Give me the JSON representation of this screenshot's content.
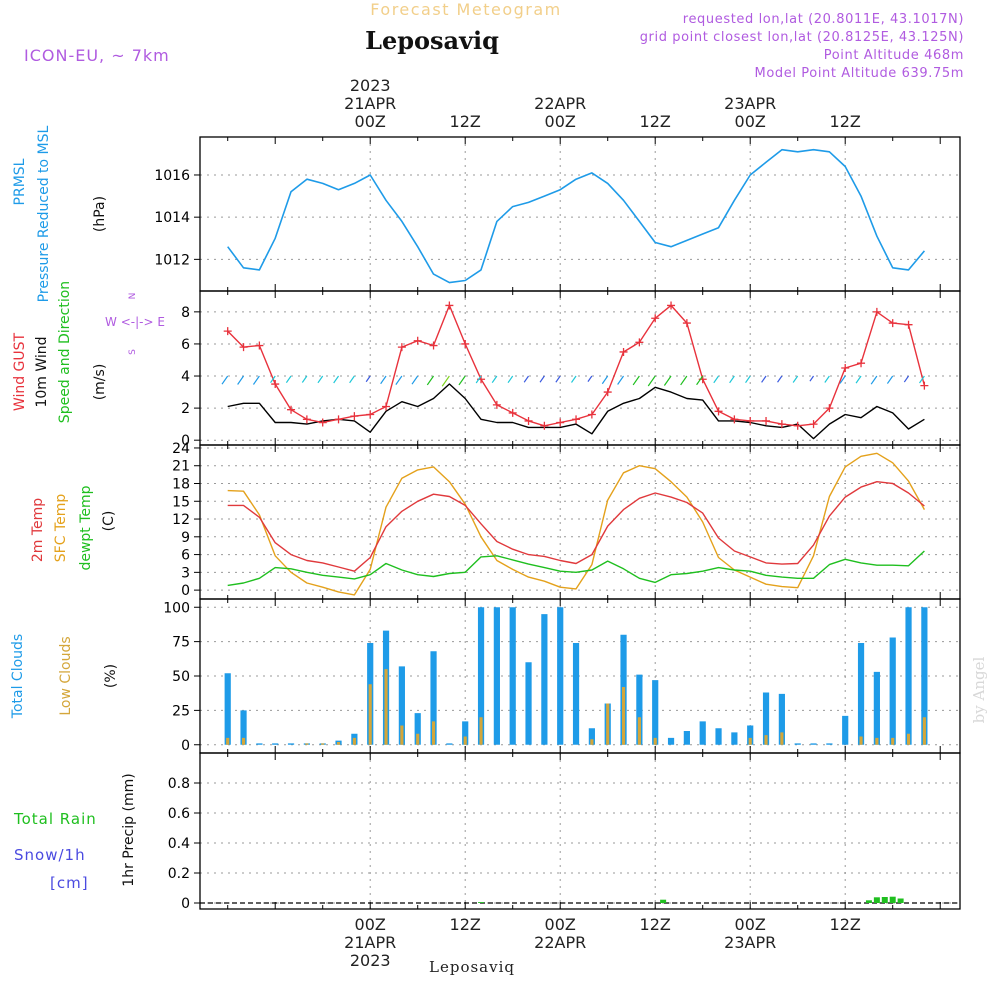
{
  "header": {
    "title_faint": "Forecast Meteogram",
    "location": "Leposaviq",
    "model": "ICON-EU, ~ 7km",
    "requested": "requested lon,lat (20.8011E, 43.1017N)",
    "gridpoint": "grid point closest lon,lat (20.8125E, 43.125N)",
    "altitude": "Point Altitude 468m",
    "model_altitude": "Model Point Altitude 639.75m",
    "footer_location": "Leposaviq",
    "watermark": "by Angel"
  },
  "time_axis": {
    "top": [
      {
        "line1": "2023",
        "line2": "21APR",
        "line3": "00Z"
      },
      {
        "line1": "",
        "line2": "",
        "line3": "12Z"
      },
      {
        "line1": "",
        "line2": "22APR",
        "line3": "00Z"
      },
      {
        "line1": "",
        "line2": "",
        "line3": "12Z"
      },
      {
        "line1": "",
        "line2": "23APR",
        "line3": "00Z"
      },
      {
        "line1": "",
        "line2": "",
        "line3": "12Z"
      }
    ],
    "bottom": [
      {
        "line1": "00Z",
        "line2": "21APR",
        "line3": "2023"
      },
      {
        "line1": "12Z",
        "line2": "",
        "line3": ""
      },
      {
        "line1": "00Z",
        "line2": "22APR",
        "line3": ""
      },
      {
        "line1": "12Z",
        "line2": "",
        "line3": ""
      },
      {
        "line1": "00Z",
        "line2": "23APR",
        "line3": ""
      },
      {
        "line1": "12Z",
        "line2": "",
        "line3": ""
      }
    ]
  },
  "panels": {
    "pressure": {
      "label1": "PRMSL",
      "label2": "Pressure Reduced to MSL",
      "unit": "(hPa)",
      "color1": "#1e9be8"
    },
    "wind": {
      "label_gust": "Wind GUST",
      "label_10m": "10m Wind",
      "label_speed": "Speed and Direction",
      "unit": "(m/s)",
      "compass_n": "N",
      "compass_s": "S",
      "compass_ew": "W <-|-> E"
    },
    "temp": {
      "label_2m": "2m Temp",
      "label_sfc": "SFC Temp",
      "label_dew": "dewpt Temp",
      "unit": "(C)"
    },
    "clouds": {
      "label_total": "Total Clouds",
      "label_low": "Low Clouds",
      "unit": "(%)"
    },
    "precip": {
      "label_rain": "Total  Rain",
      "label_snow": "Snow/1h",
      "label_cm": "[cm]",
      "unit": "1hr Precip (mm)"
    }
  },
  "colors": {
    "pressure": "#1e9be8",
    "gust": "#e8323c",
    "wind10m": "#000000",
    "temp2m": "#e0393c",
    "sfc": "#e4a11b",
    "dew": "#1fbf1f",
    "totalcloud": "#1e9be8",
    "lowcloud": "#d4a63a",
    "rain": "#1fbf1f",
    "title_faint": "#f2cf8a",
    "meta": "#b05be0"
  },
  "chart_data": [
    {
      "type": "line",
      "title": "PRMSL Pressure Reduced to MSL",
      "ylabel": "(hPa)",
      "ylim": [
        1010.5,
        1017.8
      ],
      "yticks": [
        1012,
        1014,
        1016
      ],
      "x_hours": [
        -18,
        -16,
        -14,
        -12,
        -10,
        -8,
        -6,
        -4,
        -2,
        0,
        2,
        4,
        6,
        8,
        10,
        12,
        14,
        16,
        18,
        20,
        22,
        24,
        26,
        28,
        30,
        32,
        34,
        36,
        38,
        40,
        42,
        44,
        46,
        48,
        50,
        52,
        54,
        56,
        58,
        60,
        62,
        64,
        66,
        68,
        70
      ],
      "values": [
        1012.6,
        1011.6,
        1011.5,
        1013.0,
        1015.2,
        1015.8,
        1015.6,
        1015.3,
        1015.6,
        1016.0,
        1014.8,
        1013.8,
        1012.6,
        1011.3,
        1010.9,
        1011.0,
        1011.5,
        1013.8,
        1014.5,
        1014.7,
        1015.0,
        1015.3,
        1015.8,
        1016.1,
        1015.6,
        1014.8,
        1013.8,
        1012.8,
        1012.6,
        1012.9,
        1013.2,
        1013.5,
        1014.8,
        1016.0,
        1016.6,
        1017.2,
        1017.1,
        1017.2,
        1017.1,
        1016.4,
        1015.0,
        1013.1,
        1011.6,
        1011.5,
        1012.4
      ]
    },
    {
      "type": "line",
      "title": "Wind GUST / 10m Wind",
      "ylabel": "(m/s)",
      "ylim": [
        -0.3,
        9.3
      ],
      "yticks": [
        0,
        2,
        4,
        6,
        8
      ],
      "x_hours": [
        -18,
        -16,
        -14,
        -12,
        -10,
        -8,
        -6,
        -4,
        -2,
        0,
        2,
        4,
        6,
        8,
        10,
        12,
        14,
        16,
        18,
        20,
        22,
        24,
        26,
        28,
        30,
        32,
        34,
        36,
        38,
        40,
        42,
        44,
        46,
        48,
        50,
        52,
        54,
        56,
        58,
        60,
        62,
        64,
        66,
        68,
        70
      ],
      "series": [
        {
          "name": "Wind GUST",
          "values": [
            6.8,
            5.8,
            5.9,
            3.5,
            1.9,
            1.3,
            1.1,
            1.3,
            1.5,
            1.6,
            2.1,
            5.8,
            6.2,
            5.9,
            8.4,
            6.0,
            3.8,
            2.2,
            1.7,
            1.2,
            0.9,
            1.1,
            1.3,
            1.6,
            3.0,
            5.5,
            6.1,
            7.6,
            8.4,
            7.3,
            3.8,
            1.8,
            1.3,
            1.2,
            1.2,
            1.0,
            0.9,
            1.0,
            2.0,
            4.5,
            4.8,
            8.0,
            7.3,
            7.2,
            3.4
          ]
        },
        {
          "name": "10m Wind",
          "values": [
            2.1,
            2.3,
            2.3,
            1.1,
            1.1,
            1.0,
            1.2,
            1.3,
            1.2,
            0.5,
            1.8,
            2.4,
            2.1,
            2.6,
            3.5,
            2.6,
            1.3,
            1.1,
            1.1,
            0.8,
            0.8,
            0.8,
            1.0,
            0.4,
            1.8,
            2.3,
            2.6,
            3.3,
            3.0,
            2.6,
            2.5,
            1.2,
            1.2,
            1.1,
            0.9,
            0.8,
            1.0,
            0.1,
            1.0,
            1.6,
            1.4,
            2.1,
            1.7,
            0.7,
            1.3
          ]
        }
      ]
    },
    {
      "type": "line",
      "title": "2m Temp / SFC Temp / dewpt Temp",
      "ylabel": "(C)",
      "ylim": [
        -1.5,
        24.5
      ],
      "yticks": [
        0,
        3,
        6,
        9,
        12,
        15,
        18,
        21,
        24
      ],
      "x_hours": [
        -18,
        -16,
        -14,
        -12,
        -10,
        -8,
        -6,
        -4,
        -2,
        0,
        2,
        4,
        6,
        8,
        10,
        12,
        14,
        16,
        18,
        20,
        22,
        24,
        26,
        28,
        30,
        32,
        34,
        36,
        38,
        40,
        42,
        44,
        46,
        48,
        50,
        52,
        54,
        56,
        58,
        60,
        62,
        64,
        66,
        68,
        70
      ],
      "series": [
        {
          "name": "2m Temp",
          "values": [
            14.3,
            14.3,
            12.3,
            8.0,
            6.0,
            5.0,
            4.6,
            3.9,
            3.2,
            5.5,
            10.7,
            13.3,
            15.0,
            16.2,
            15.8,
            14.3,
            11.2,
            8.2,
            6.9,
            6.0,
            5.7,
            5.0,
            4.5,
            6.0,
            10.8,
            13.6,
            15.5,
            16.4,
            15.7,
            14.8,
            13.0,
            8.8,
            6.6,
            5.6,
            4.6,
            4.4,
            4.5,
            7.6,
            12.5,
            15.7,
            17.4,
            18.3,
            18.0,
            16.4,
            14.2
          ]
        },
        {
          "name": "SFC Temp",
          "values": [
            16.8,
            16.7,
            12.7,
            5.8,
            3.0,
            1.2,
            0.5,
            -0.3,
            -0.8,
            3.5,
            14.0,
            18.9,
            20.3,
            20.8,
            18.3,
            14.5,
            9.0,
            5.0,
            3.5,
            2.2,
            1.5,
            0.5,
            0.2,
            4.3,
            15.2,
            19.8,
            21.0,
            20.5,
            18.3,
            15.7,
            11.5,
            5.5,
            3.4,
            2.2,
            1.0,
            0.6,
            0.4,
            5.8,
            15.8,
            20.8,
            22.6,
            23.1,
            21.5,
            18.4,
            13.6
          ]
        },
        {
          "name": "dewpt Temp",
          "values": [
            0.8,
            1.2,
            2.0,
            3.8,
            3.6,
            3.0,
            2.5,
            2.2,
            1.9,
            2.6,
            4.5,
            3.4,
            2.6,
            2.3,
            2.8,
            3.0,
            5.6,
            5.8,
            5.1,
            4.4,
            3.8,
            3.2,
            3.0,
            3.4,
            4.9,
            3.6,
            2.0,
            1.3,
            2.6,
            2.8,
            3.2,
            3.8,
            3.4,
            3.2,
            2.5,
            2.2,
            2.0,
            2.0,
            4.3,
            5.2,
            4.6,
            4.2,
            4.2,
            4.1,
            6.6
          ]
        }
      ]
    },
    {
      "type": "bar",
      "title": "Total Clouds / Low Clouds",
      "ylabel": "(%)",
      "ylim": [
        -6,
        106
      ],
      "yticks": [
        0,
        25,
        50,
        75,
        100
      ],
      "x_hours": [
        -18,
        -16,
        -14,
        -12,
        -10,
        -8,
        -6,
        -4,
        -2,
        0,
        2,
        4,
        6,
        8,
        10,
        12,
        14,
        16,
        18,
        20,
        22,
        24,
        26,
        28,
        30,
        32,
        34,
        36,
        38,
        40,
        42,
        44,
        46,
        48,
        50,
        52,
        54,
        56,
        58,
        60,
        62,
        64,
        66,
        68,
        70
      ],
      "series": [
        {
          "name": "Total Clouds",
          "values": [
            52,
            25,
            1,
            1,
            1,
            1,
            1,
            3,
            8,
            74,
            83,
            57,
            23,
            68,
            1,
            17,
            100,
            100,
            100,
            60,
            95,
            100,
            74,
            12,
            30,
            80,
            51,
            47,
            5,
            10,
            17,
            12,
            9,
            14,
            38,
            37,
            1,
            1,
            1,
            21,
            74,
            53,
            78,
            100,
            100
          ]
        },
        {
          "name": "Low Clouds",
          "values": [
            5,
            5,
            0,
            0,
            0,
            1,
            1,
            2,
            5,
            44,
            55,
            14,
            8,
            17,
            0,
            6,
            20,
            0,
            0,
            0,
            0,
            0,
            0,
            4,
            30,
            42,
            20,
            5,
            0,
            0,
            0,
            0,
            0,
            5,
            7,
            9,
            0,
            0,
            0,
            0,
            6,
            5,
            5,
            8,
            20
          ]
        }
      ]
    },
    {
      "type": "bar",
      "title": "1hr Precip (mm)",
      "ylabel": "1hr Precip (mm)",
      "ylim": [
        -0.04,
        1.0
      ],
      "yticks": [
        0,
        0.2,
        0.4,
        0.6,
        0.8
      ],
      "yticklabels": [
        "0",
        "0.2",
        "0.4",
        "0.6",
        "0.8"
      ],
      "x_hours": [
        14,
        37,
        63,
        64,
        65,
        66,
        67
      ],
      "series": [
        {
          "name": "Total Rain",
          "values": [
            0.006,
            0.022,
            0.018,
            0.038,
            0.04,
            0.042,
            0.03
          ]
        }
      ]
    }
  ]
}
